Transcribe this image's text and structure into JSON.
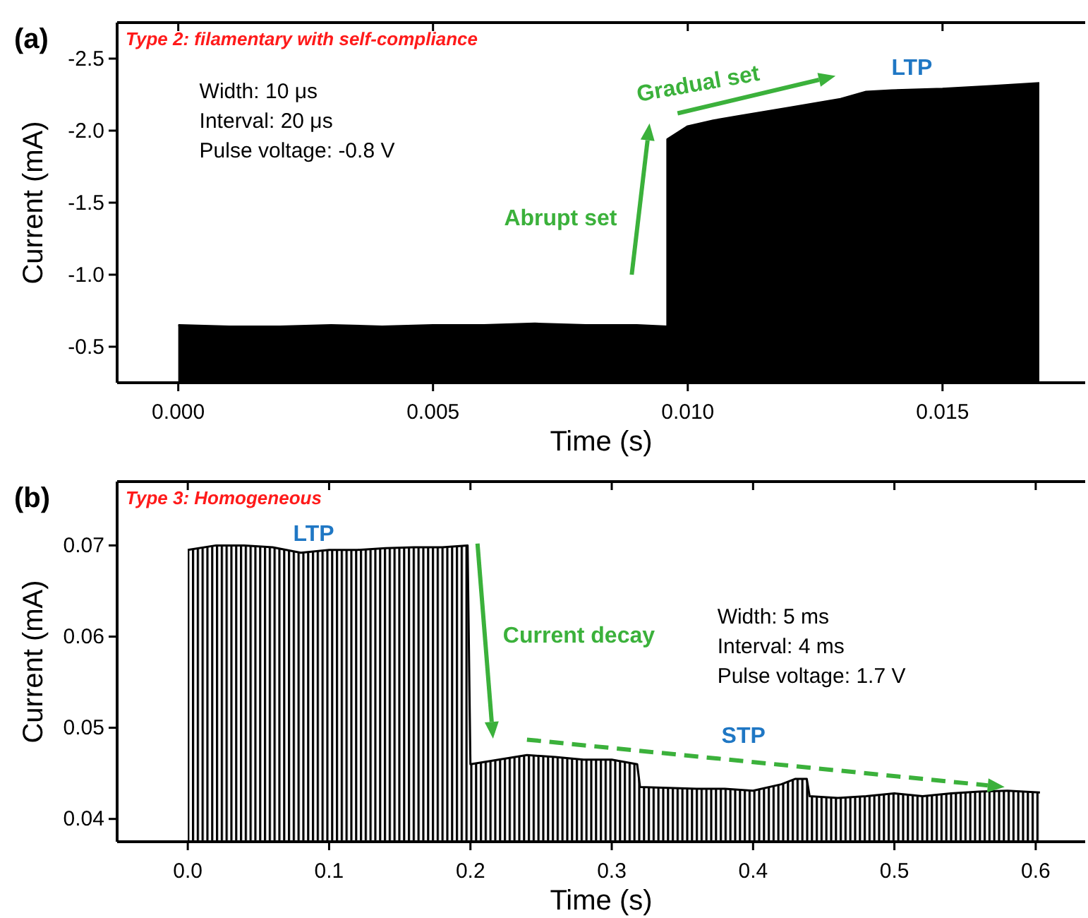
{
  "chart_data": [
    {
      "type": "area",
      "title": "(a)",
      "xlabel": "Time (s)",
      "ylabel": "Current (mA)",
      "xlim": [
        -0.0012,
        0.0178
      ],
      "ylim": [
        -0.25,
        -2.75
      ],
      "xticks": [
        {
          "value": 0,
          "label": "0.000"
        },
        {
          "value": 0.005,
          "label": "0.005"
        },
        {
          "value": 0.01,
          "label": "0.010"
        },
        {
          "value": 0.015,
          "label": "0.015"
        }
      ],
      "yticks": [
        {
          "value": -0.5,
          "label": "-0.5"
        },
        {
          "value": -1,
          "label": "-1.0"
        },
        {
          "value": -1.5,
          "label": "-1.5"
        },
        {
          "value": -2,
          "label": "-2.0"
        },
        {
          "value": -2.5,
          "label": "-2.5"
        }
      ],
      "series": [
        {
          "color": "#000000",
          "x": [
            0,
            0.001,
            0.002,
            0.003,
            0.004,
            0.005,
            0.006,
            0.007,
            0.008,
            0.009,
            0.0096,
            0.0096,
            0.01,
            0.0105,
            0.011,
            0.012,
            0.013,
            0.0135,
            0.014,
            0.015,
            0.016,
            0.0169
          ],
          "values": [
            -0.65,
            -0.64,
            -0.64,
            -0.65,
            -0.64,
            -0.65,
            -0.65,
            -0.66,
            -0.65,
            -0.65,
            -0.64,
            -1.94,
            -2.03,
            -2.07,
            -2.1,
            -2.16,
            -2.22,
            -2.27,
            -2.28,
            -2.29,
            -2.31,
            -2.33
          ]
        }
      ],
      "annotations": [
        "Type 2: filamentary with self-compliance",
        "Width: 10 μs",
        "Interval: 20 μs",
        "Pulse voltage: -0.8 V",
        "Abrupt set",
        "Gradual set",
        "LTP"
      ]
    },
    {
      "type": "area",
      "title": "(b)",
      "xlabel": "Time (s)",
      "ylabel": "Current (mA)",
      "xlim": [
        -0.05,
        0.635
      ],
      "ylim": [
        0.0375,
        0.077
      ],
      "xticks": [
        {
          "value": 0,
          "label": "0.0"
        },
        0.1,
        0.2,
        0.3,
        0.4,
        0.5,
        0.6
      ],
      "yticks": [
        0.04,
        0.05,
        0.06,
        0.07
      ],
      "series": [
        {
          "color": "#000000",
          "x": [
            0,
            0.02,
            0.04,
            0.06,
            0.08,
            0.1,
            0.12,
            0.14,
            0.16,
            0.18,
            0.198,
            0.2,
            0.22,
            0.24,
            0.26,
            0.28,
            0.3,
            0.318,
            0.32,
            0.34,
            0.36,
            0.38,
            0.4,
            0.42,
            0.43,
            0.438,
            0.44,
            0.46,
            0.48,
            0.5,
            0.52,
            0.54,
            0.56,
            0.58,
            0.603
          ],
          "values": [
            0.0695,
            0.07,
            0.07,
            0.0698,
            0.0692,
            0.0695,
            0.0695,
            0.0697,
            0.0698,
            0.0698,
            0.07,
            0.046,
            0.0465,
            0.047,
            0.0468,
            0.0465,
            0.0465,
            0.046,
            0.0435,
            0.0434,
            0.0433,
            0.0433,
            0.0431,
            0.0438,
            0.0444,
            0.0444,
            0.0425,
            0.0423,
            0.0425,
            0.0428,
            0.0425,
            0.0428,
            0.043,
            0.0431,
            0.0429
          ]
        }
      ],
      "annotations": [
        "Type 3: Homogeneous",
        "Width: 5 ms",
        "Interval: 4 ms",
        "Pulse voltage: 1.7 V",
        "LTP",
        "Current decay",
        "STP"
      ]
    }
  ]
}
